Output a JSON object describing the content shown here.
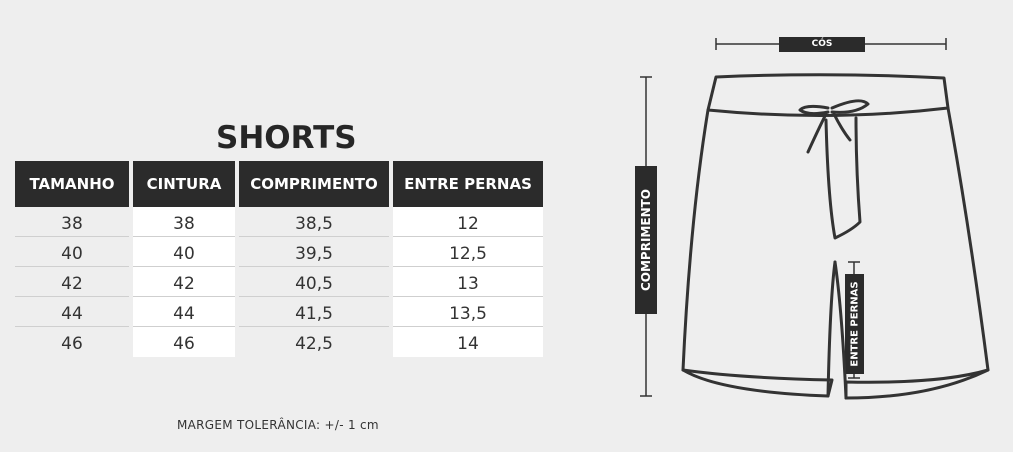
{
  "title": "SHORTS",
  "table": {
    "headers": [
      "TAMANHO",
      "CINTURA",
      "COMPRIMENTO",
      "ENTRE PERNAS"
    ],
    "rows": [
      [
        "38",
        "38",
        "38,5",
        "12"
      ],
      [
        "40",
        "40",
        "39,5",
        "12,5"
      ],
      [
        "42",
        "42",
        "40,5",
        "13"
      ],
      [
        "44",
        "44",
        "41,5",
        "13,5"
      ],
      [
        "46",
        "46",
        "42,5",
        "14"
      ]
    ]
  },
  "note": "MARGEM TOLERÂNCIA: +/- 1 cm",
  "diagram": {
    "waist_label": "CÓS",
    "length_label": "COMPRIMENTO",
    "inseam_label": "ENTRE PERNAS"
  },
  "colors": {
    "background": "#eeeeee",
    "header": "#2b2b2b",
    "outline": "#333333"
  }
}
